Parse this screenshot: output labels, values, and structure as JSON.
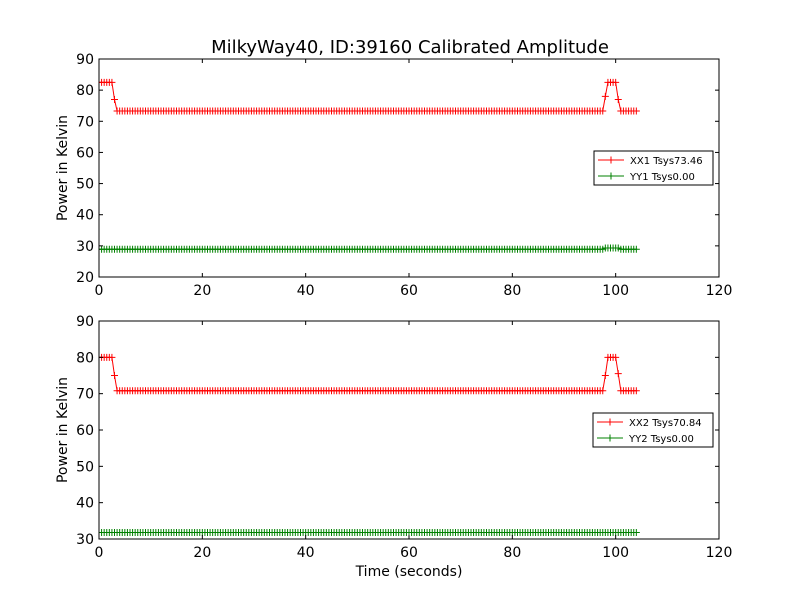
{
  "title": "MilkyWay40, ID:39160 Calibrated Amplitude",
  "chart_data": [
    {
      "type": "line",
      "xlabel": "",
      "ylabel": "Power in Kelvin",
      "xlim": [
        0,
        120
      ],
      "ylim": [
        20,
        90
      ],
      "xticks": [
        0,
        20,
        40,
        60,
        80,
        100,
        120
      ],
      "yticks": [
        20,
        30,
        40,
        50,
        60,
        70,
        80,
        90
      ],
      "grid": false,
      "legend_position": "center-right",
      "x": {
        "start": 0,
        "step": 0.5,
        "count": 209
      },
      "series": [
        {
          "name": "XX1 Tsys73.46",
          "color": "#ff0000",
          "marker": "+",
          "segments": [
            {
              "from": 0,
              "to": 2.5,
              "value": 82.5
            },
            {
              "from": 3.0,
              "to": 3.0,
              "value": 77.0
            },
            {
              "from": 3.5,
              "to": 97.5,
              "value": 73.3
            },
            {
              "from": 98.0,
              "to": 98.0,
              "value": 78.0
            },
            {
              "from": 98.5,
              "to": 100.0,
              "value": 82.5
            },
            {
              "from": 100.5,
              "to": 100.5,
              "value": 77.0
            },
            {
              "from": 101.0,
              "to": 104.0,
              "value": 73.3
            }
          ]
        },
        {
          "name": "YY1 Tsys0.00",
          "color": "#008000",
          "marker": "+",
          "segments": [
            {
              "from": 0,
              "to": 97.5,
              "value": 28.9
            },
            {
              "from": 98.0,
              "to": 100.5,
              "value": 29.3
            },
            {
              "from": 101.0,
              "to": 104.0,
              "value": 28.9
            }
          ]
        }
      ]
    },
    {
      "type": "line",
      "xlabel": "Time (seconds)",
      "ylabel": "Power in Kelvin",
      "xlim": [
        0,
        120
      ],
      "ylim": [
        30,
        90
      ],
      "xticks": [
        0,
        20,
        40,
        60,
        80,
        100,
        120
      ],
      "yticks": [
        30,
        40,
        50,
        60,
        70,
        80,
        90
      ],
      "grid": false,
      "legend_position": "center-right",
      "x": {
        "start": 0,
        "step": 0.5,
        "count": 209
      },
      "series": [
        {
          "name": "XX2 Tsys70.84",
          "color": "#ff0000",
          "marker": "+",
          "segments": [
            {
              "from": 0,
              "to": 2.5,
              "value": 80.0
            },
            {
              "from": 3.0,
              "to": 3.0,
              "value": 75.0
            },
            {
              "from": 3.5,
              "to": 97.5,
              "value": 70.8
            },
            {
              "from": 98.0,
              "to": 98.0,
              "value": 75.0
            },
            {
              "from": 98.5,
              "to": 100.0,
              "value": 80.0
            },
            {
              "from": 100.5,
              "to": 100.5,
              "value": 75.5
            },
            {
              "from": 101.0,
              "to": 104.0,
              "value": 70.8
            }
          ]
        },
        {
          "name": "YY2 Tsys0.00",
          "color": "#008000",
          "marker": "+",
          "segments": [
            {
              "from": 0,
              "to": 104.0,
              "value": 31.8
            }
          ]
        }
      ]
    }
  ]
}
